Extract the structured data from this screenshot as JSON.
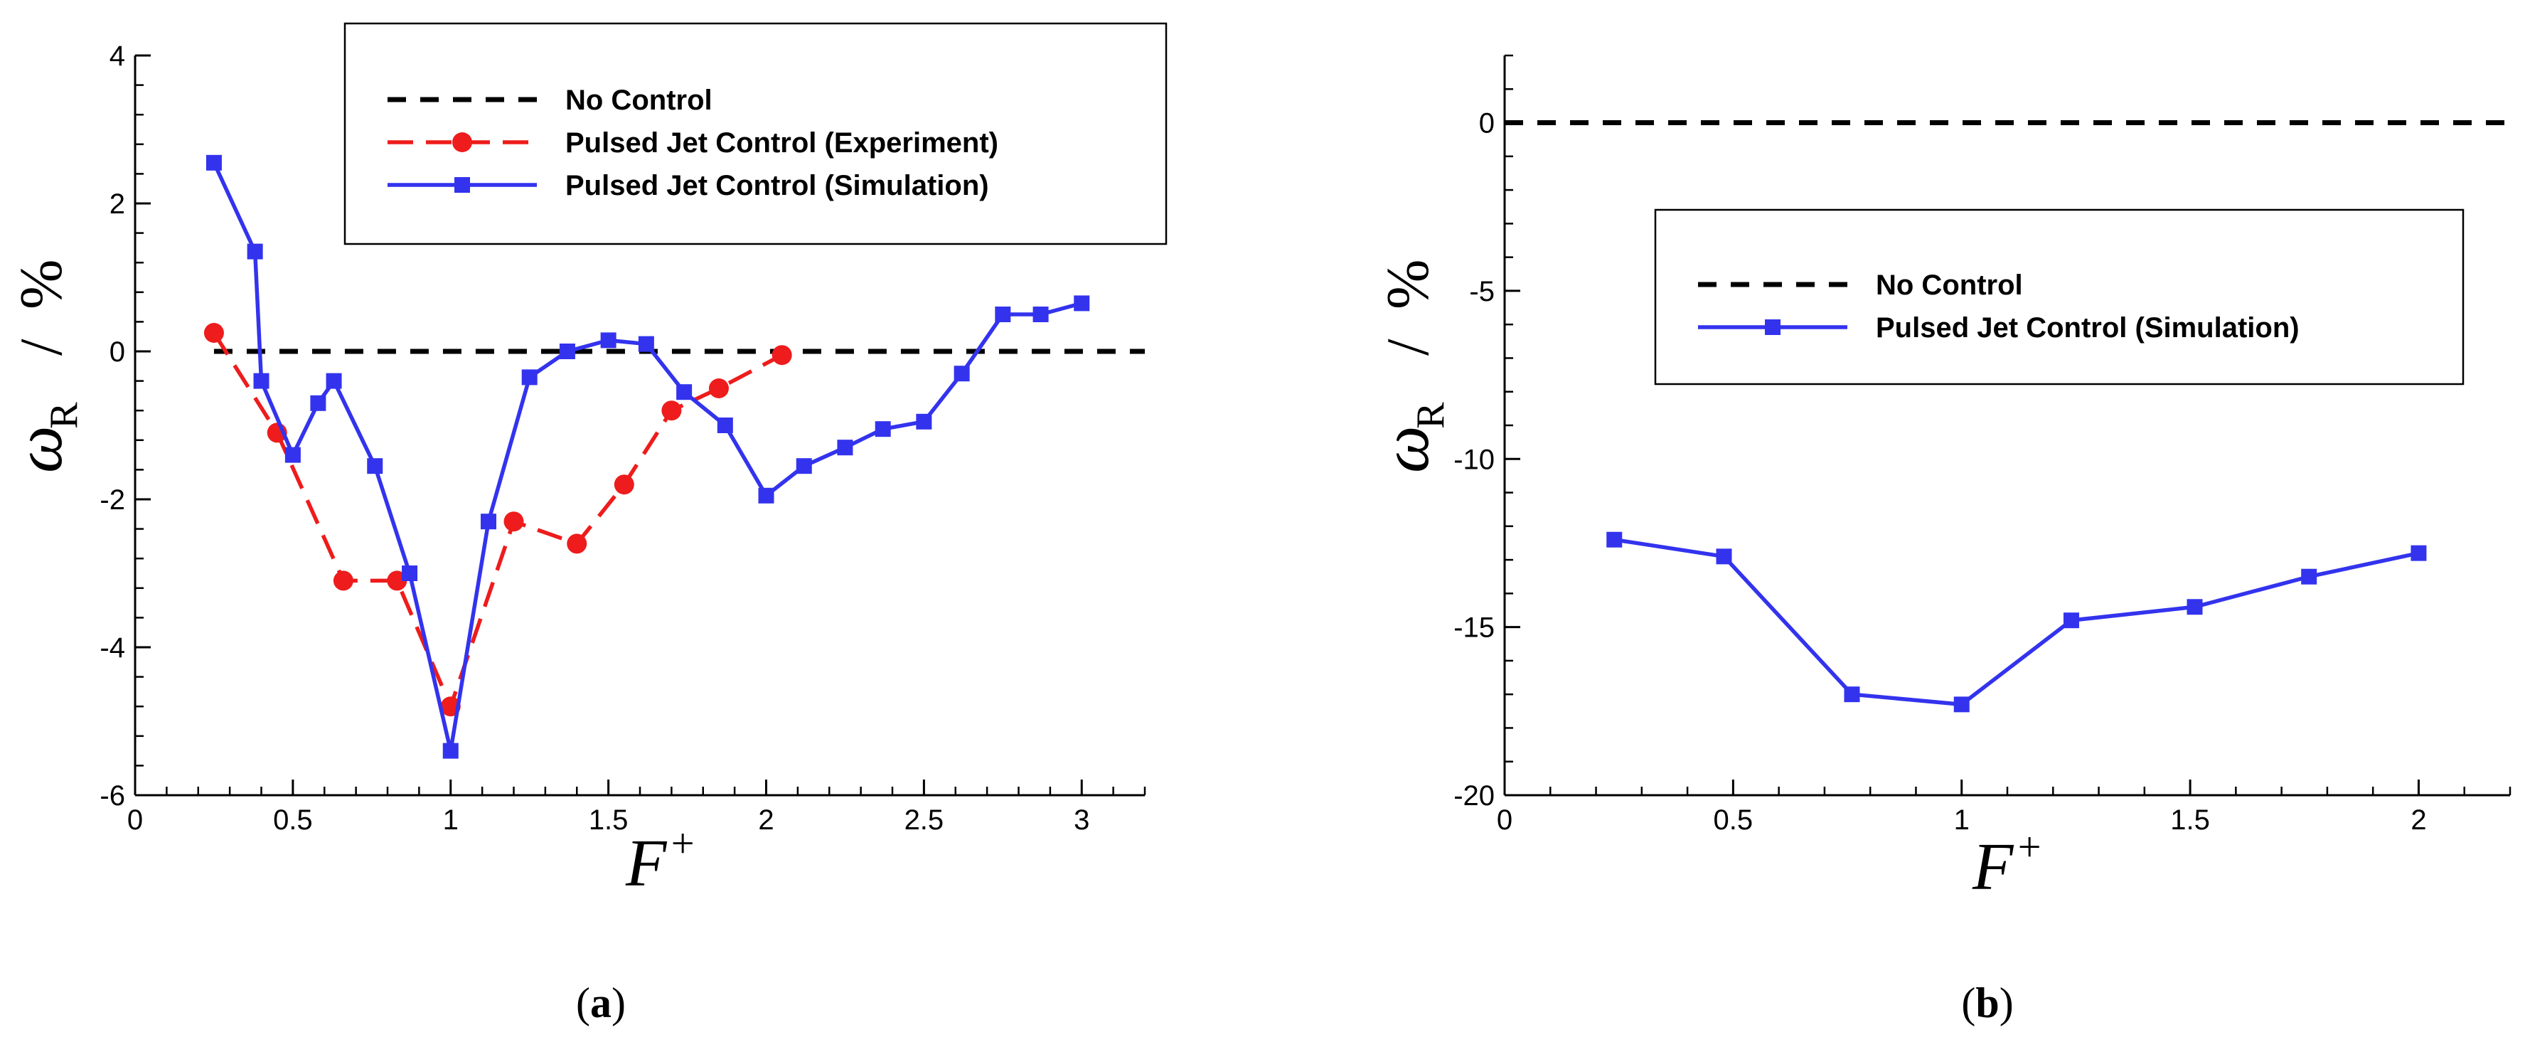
{
  "chart_data": [
    {
      "type": "line",
      "panel": "a",
      "caption": {
        "open": "(",
        "letter": "a",
        "close": ")"
      },
      "xlabel": {
        "symbol": "F",
        "sup": "+"
      },
      "ylabel": {
        "symbol": "ω",
        "sub": "R",
        "sep": "/",
        "unit": "%"
      },
      "xlim": [
        0,
        3.2
      ],
      "ylim": [
        -6,
        4
      ],
      "xticks": [
        0,
        0.5,
        1,
        1.5,
        2,
        2.5,
        3
      ],
      "xtick_labels": [
        "0",
        "0.5",
        "1",
        "1.5",
        "2",
        "2.5",
        "3"
      ],
      "yticks": [
        -6,
        -4,
        -2,
        0,
        2,
        4
      ],
      "ytick_labels": [
        "-6",
        "-4",
        "-2",
        "0",
        "2",
        "4"
      ],
      "legend_position": "top-right",
      "series": [
        {
          "name": "No Control",
          "style": "dashed",
          "marker": "none",
          "color": "#000000",
          "x": [
            0.25,
            3.2
          ],
          "y": [
            0,
            0
          ]
        },
        {
          "name": "Pulsed Jet Control (Experiment)",
          "style": "dashed",
          "marker": "circle",
          "color": "#ee1c1c",
          "x": [
            0.25,
            0.45,
            0.66,
            0.83,
            1.0,
            1.2,
            1.4,
            1.55,
            1.7,
            1.85,
            2.05
          ],
          "y": [
            0.25,
            -1.1,
            -3.1,
            -3.1,
            -4.8,
            -2.3,
            -2.6,
            -1.8,
            -0.8,
            -0.5,
            -0.05
          ]
        },
        {
          "name": "Pulsed Jet Control (Simulation)",
          "style": "solid",
          "marker": "square",
          "color": "#3333ee",
          "x": [
            0.25,
            0.38,
            0.4,
            0.5,
            0.58,
            0.63,
            0.76,
            0.87,
            1.0,
            1.12,
            1.25,
            1.37,
            1.5,
            1.62,
            1.74,
            1.87,
            2.0,
            2.12,
            2.25,
            2.37,
            2.5,
            2.62,
            2.75,
            2.87,
            3.0
          ],
          "y": [
            2.55,
            1.35,
            -0.4,
            -1.4,
            -0.7,
            -0.4,
            -1.55,
            -3.0,
            -5.4,
            -2.3,
            -0.35,
            0.0,
            0.15,
            0.1,
            -0.55,
            -1.0,
            -1.95,
            -1.55,
            -1.3,
            -1.05,
            -0.95,
            -0.3,
            0.5,
            0.5,
            0.65
          ]
        }
      ]
    },
    {
      "type": "line",
      "panel": "b",
      "caption": {
        "open": "(",
        "letter": "b",
        "close": ")"
      },
      "xlabel": {
        "symbol": "F",
        "sup": "+"
      },
      "ylabel": {
        "symbol": "ω",
        "sub": "R",
        "sep": "/",
        "unit": "%"
      },
      "xlim": [
        0,
        2.2
      ],
      "ylim": [
        -20,
        2
      ],
      "xticks": [
        0,
        0.5,
        1,
        1.5,
        2
      ],
      "xtick_labels": [
        "0",
        "0.5",
        "1",
        "1.5",
        "2"
      ],
      "yticks": [
        -20,
        -15,
        -10,
        -5,
        0
      ],
      "ytick_labels": [
        "-20",
        "-15",
        "-10",
        "-5",
        "0"
      ],
      "legend_position": "center-right",
      "series": [
        {
          "name": "No Control",
          "style": "dashed",
          "marker": "none",
          "color": "#000000",
          "x": [
            0,
            2.2
          ],
          "y": [
            0,
            0
          ]
        },
        {
          "name": "Pulsed Jet Control (Simulation)",
          "style": "solid",
          "marker": "square",
          "color": "#3333ee",
          "x": [
            0.24,
            0.48,
            0.76,
            1.0,
            1.24,
            1.51,
            1.76,
            2.0
          ],
          "y": [
            -12.4,
            -12.9,
            -17.0,
            -17.3,
            -14.8,
            -14.4,
            -13.5,
            -12.8
          ]
        }
      ]
    }
  ]
}
